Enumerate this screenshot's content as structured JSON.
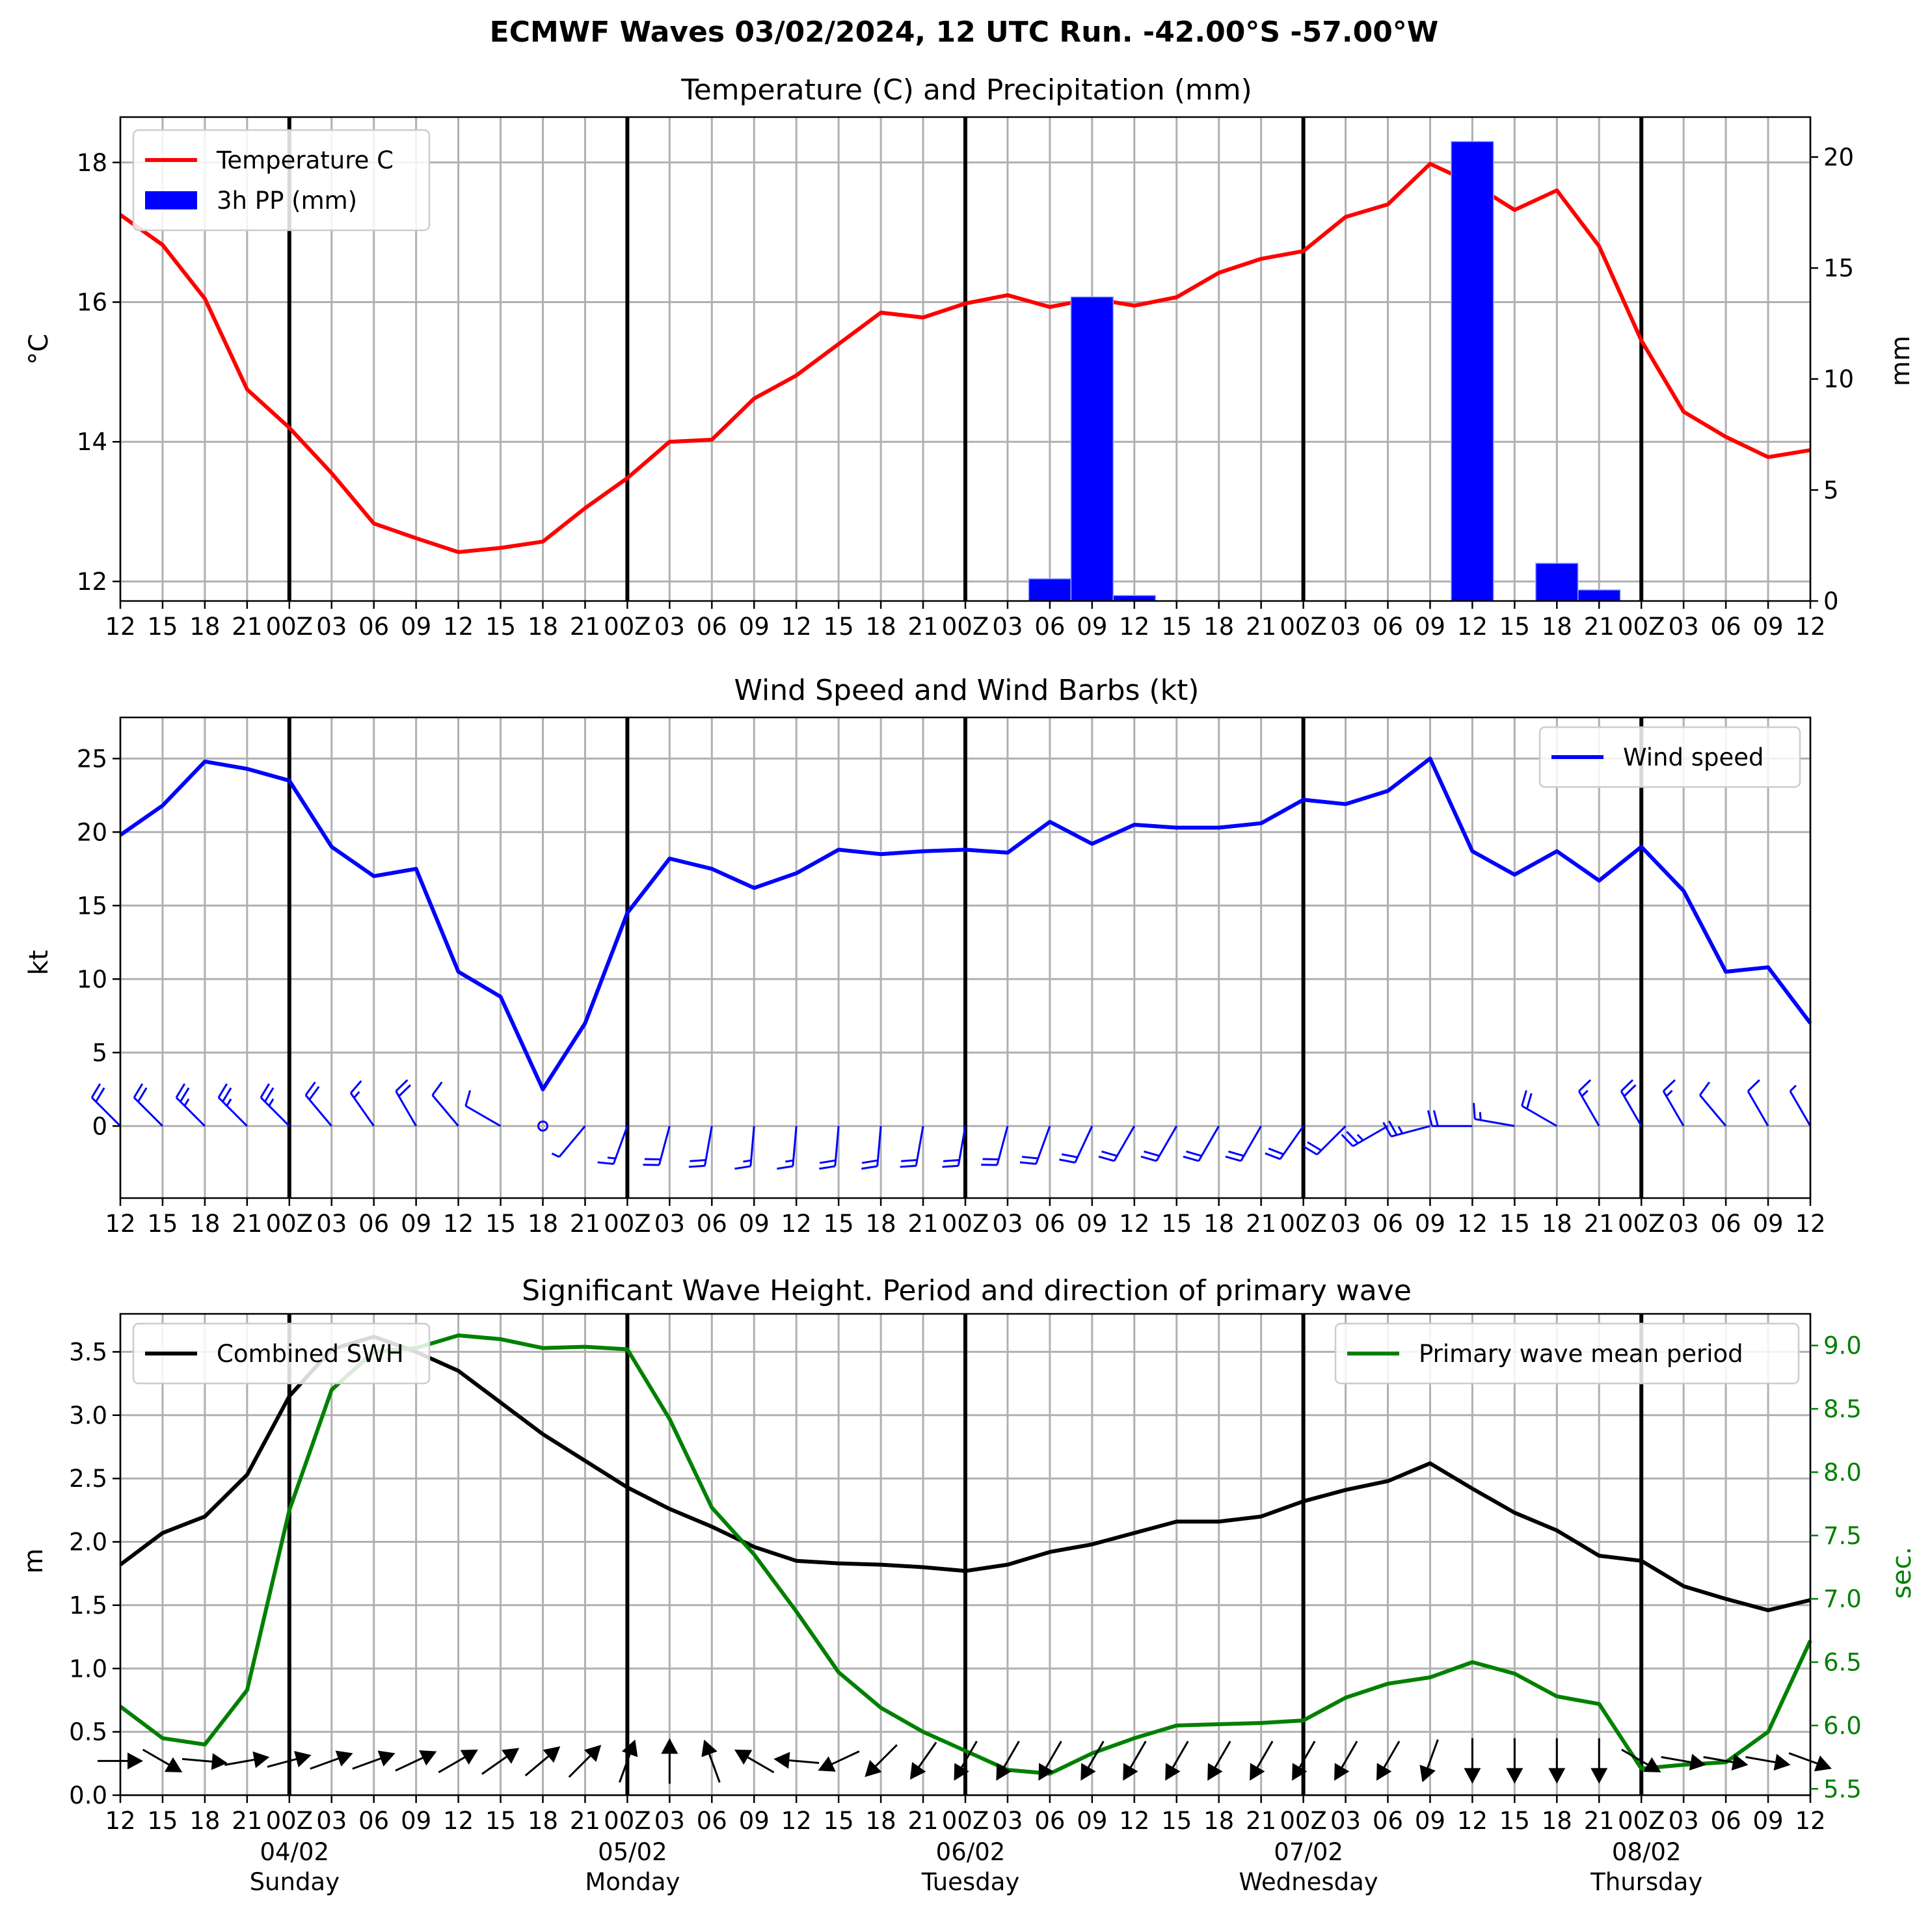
{
  "title": "ECMWF Waves 03/02/2024, 12 UTC Run. -42.00°S -57.00°W",
  "xaxis": {
    "tick_labels": [
      "12",
      "15",
      "18",
      "21",
      "00Z",
      "03",
      "06",
      "09",
      "12",
      "15",
      "18",
      "21",
      "00Z",
      "03",
      "06",
      "09",
      "12",
      "15",
      "18",
      "21",
      "00Z",
      "03",
      "06",
      "09",
      "12",
      "15",
      "18",
      "21",
      "00Z",
      "03",
      "06",
      "09",
      "12",
      "15",
      "18",
      "21",
      "00Z",
      "03",
      "06",
      "09",
      "12"
    ],
    "day_labels": [
      {
        "date": "04/02",
        "weekday": "Sunday",
        "tick": 4
      },
      {
        "date": "05/02",
        "weekday": "Monday",
        "tick": 12
      },
      {
        "date": "06/02",
        "weekday": "Tuesday",
        "tick": 20
      },
      {
        "date": "07/02",
        "weekday": "Wednesday",
        "tick": 28
      },
      {
        "date": "08/02",
        "weekday": "Thursday",
        "tick": 36
      }
    ]
  },
  "chart_data": [
    {
      "type": "line",
      "title": "Temperature (C) and Precipitation (mm)",
      "ylabel": "°C",
      "ylabel_right": "mm",
      "ylim": [
        11.72,
        18.65
      ],
      "ylim_right": [
        0,
        21.8
      ],
      "yticks": [
        12,
        14,
        16,
        18
      ],
      "yticks_right": [
        0,
        5,
        10,
        15,
        20
      ],
      "legend_position": "upper-left",
      "series": [
        {
          "name": "Temperature C",
          "color": "#ff0000",
          "axis": "left",
          "values": [
            17.25,
            16.82,
            16.05,
            14.75,
            14.2,
            13.55,
            12.83,
            12.62,
            12.42,
            12.48,
            12.57,
            13.05,
            13.48,
            14.0,
            14.03,
            14.62,
            14.95,
            15.4,
            15.85,
            15.78,
            15.98,
            16.1,
            15.93,
            16.05,
            15.95,
            16.07,
            16.42,
            16.62,
            16.73,
            17.22,
            17.4,
            17.98,
            17.7,
            17.32,
            17.6,
            16.8,
            15.45,
            14.43,
            14.07,
            13.78,
            13.88
          ]
        },
        {
          "name": "3h PP (mm)",
          "type": "bar",
          "color": "#0000ff",
          "axis": "right",
          "values": [
            0,
            0,
            0,
            0,
            0,
            0,
            0,
            0,
            0,
            0,
            0,
            0,
            0,
            0,
            0,
            0,
            0,
            0,
            0,
            0,
            0,
            0,
            1.0,
            13.7,
            0.25,
            0,
            0,
            0,
            0,
            0,
            0,
            0,
            20.7,
            0,
            1.7,
            0.5,
            0,
            0,
            0,
            0,
            0
          ]
        }
      ]
    },
    {
      "type": "line",
      "title": "Wind Speed and Wind Barbs (kt)",
      "ylabel": "kt",
      "ylim": [
        -4.9,
        27.8
      ],
      "yticks": [
        0,
        5,
        10,
        15,
        20,
        25
      ],
      "legend_position": "upper-right",
      "series": [
        {
          "name": "Wind speed",
          "color": "#0000ff",
          "values": [
            19.8,
            21.8,
            24.8,
            24.3,
            23.5,
            19.0,
            17.0,
            17.5,
            10.5,
            8.8,
            2.5,
            7.0,
            14.5,
            18.2,
            17.5,
            16.2,
            17.2,
            18.8,
            18.5,
            18.7,
            18.8,
            18.6,
            20.7,
            19.2,
            20.5,
            20.3,
            20.3,
            20.6,
            22.2,
            21.9,
            22.8,
            25.0,
            18.7,
            17.1,
            18.7,
            16.7,
            19.0,
            16.0,
            10.5,
            10.8,
            7.0
          ]
        }
      ],
      "barbs": {
        "color": "#0000ff",
        "direction_deg": [
          315,
          315,
          315,
          315,
          315,
          320,
          325,
          330,
          320,
          300,
          null,
          220,
          200,
          195,
          190,
          185,
          185,
          185,
          185,
          190,
          190,
          195,
          200,
          205,
          210,
          210,
          210,
          210,
          215,
          225,
          240,
          255,
          270,
          280,
          300,
          330,
          330,
          330,
          320,
          330,
          330
        ]
      }
    },
    {
      "type": "line",
      "title": "Significant Wave Height. Period and direction of primary wave",
      "ylabel": "m",
      "ylabel_right": "sec.",
      "ylim": [
        0,
        3.8
      ],
      "ylim_right": [
        5.45,
        9.25
      ],
      "yticks": [
        0.0,
        0.5,
        1.0,
        1.5,
        2.0,
        2.5,
        3.0,
        3.5
      ],
      "yticks_right": [
        5.5,
        6.0,
        6.5,
        7.0,
        7.5,
        8.0,
        8.5,
        9.0
      ],
      "series": [
        {
          "name": "Combined SWH",
          "color": "#000000",
          "axis": "left",
          "legend_position": "upper-left",
          "values": [
            1.82,
            2.07,
            2.2,
            2.53,
            3.15,
            3.52,
            3.62,
            3.5,
            3.35,
            3.1,
            2.85,
            2.64,
            2.43,
            2.26,
            2.12,
            1.96,
            1.85,
            1.83,
            1.82,
            1.8,
            1.77,
            1.82,
            1.92,
            1.98,
            2.07,
            2.16,
            2.16,
            2.2,
            2.32,
            2.41,
            2.48,
            2.62,
            2.42,
            2.23,
            2.09,
            1.89,
            1.85,
            1.65,
            1.55,
            1.46,
            1.54
          ]
        },
        {
          "name": "Primary wave mean period",
          "color": "#008000",
          "axis": "right",
          "legend_position": "upper-right",
          "values": [
            6.15,
            5.9,
            5.85,
            6.28,
            7.7,
            8.65,
            8.95,
            8.98,
            9.08,
            9.05,
            8.98,
            8.99,
            8.97,
            8.42,
            7.72,
            7.35,
            6.9,
            6.42,
            6.14,
            5.95,
            5.8,
            5.65,
            5.62,
            5.78,
            5.9,
            6.0,
            6.01,
            6.02,
            6.04,
            6.22,
            6.33,
            6.38,
            6.5,
            6.41,
            6.23,
            6.17,
            5.66,
            5.69,
            5.71,
            5.95,
            6.67
          ]
        }
      ],
      "direction_arrows": {
        "color": "#000000",
        "direction_deg": [
          90,
          120,
          95,
          80,
          75,
          70,
          70,
          65,
          60,
          55,
          50,
          45,
          20,
          0,
          340,
          300,
          275,
          245,
          225,
          215,
          210,
          210,
          210,
          210,
          210,
          210,
          210,
          210,
          210,
          210,
          210,
          200,
          180,
          180,
          180,
          180,
          120,
          100,
          100,
          100,
          110
        ]
      }
    }
  ]
}
